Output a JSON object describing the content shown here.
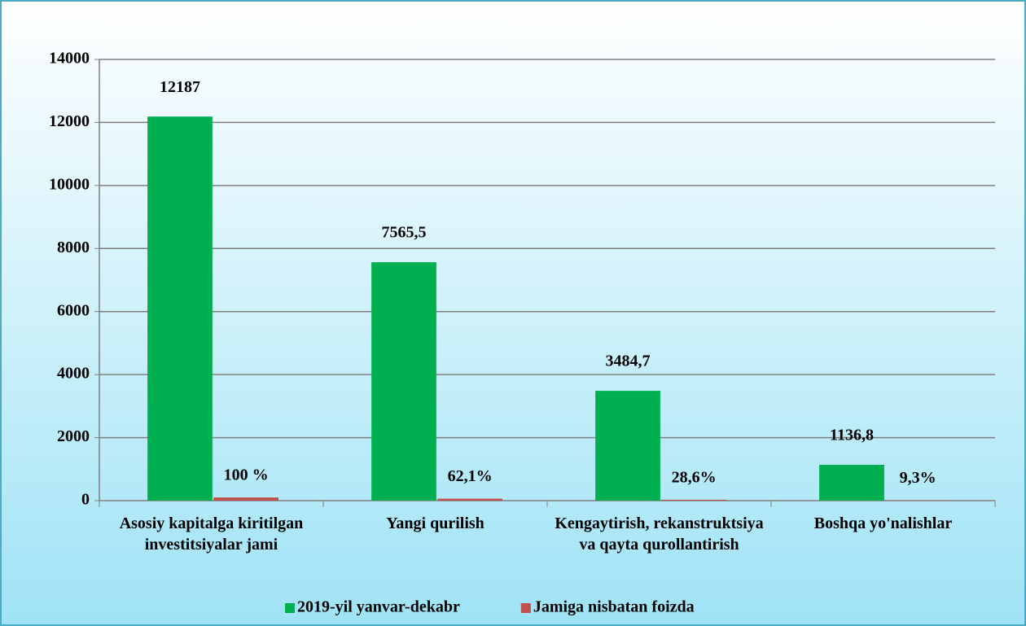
{
  "chart_data": {
    "type": "bar",
    "categories": [
      "Asosiy kapitalga kiritilgan investitsiyalar jami",
      "Yangi qurilish",
      "Kengaytirish, rekanstruktsiya va qayta qurollantirish",
      "Boshqa yo'nalishlar"
    ],
    "series": [
      {
        "name": "2019-yil yanvar-dekabr",
        "color": "#00b050",
        "values": [
          12187,
          7565.5,
          3484.7,
          1136.8
        ],
        "value_labels": [
          "12187",
          "7565,5",
          "3484,7",
          "1136,8"
        ]
      },
      {
        "name": "Jamiga nisbatan foizda",
        "color": "#c0504d",
        "values": [
          100,
          62.1,
          28.6,
          9.3
        ],
        "value_labels": [
          "100 %",
          "62,1%",
          "28,6%",
          "9,3%"
        ]
      }
    ],
    "ylim": [
      0,
      14000
    ],
    "yticks": [
      0,
      2000,
      4000,
      6000,
      8000,
      10000,
      12000,
      14000
    ],
    "grid": true,
    "legend": "bottom"
  }
}
